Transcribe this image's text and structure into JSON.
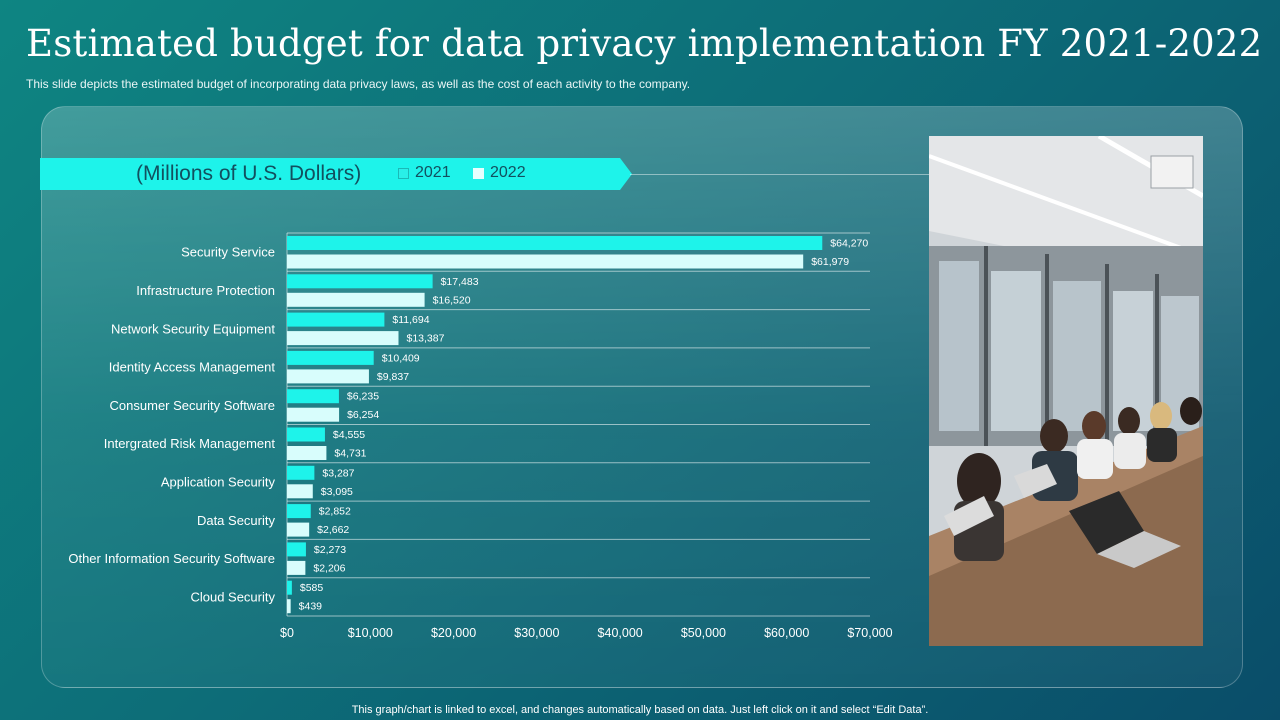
{
  "title": "Estimated budget for data privacy implementation FY 2021-2022",
  "subtitle": "This slide depicts the estimated budget of incorporating data  privacy laws, as well as the cost of each activity to the company.",
  "footer": "This graph/chart is linked to excel,  and changes automatically based on data. Just left click on it and select “Edit Data”.",
  "colors": {
    "series_2021": "#1ef3ea",
    "series_2022": "#d8fdfc",
    "banner": "#1ef3ea",
    "banner_text": "#12505f"
  },
  "chart_data": {
    "type": "bar",
    "orientation": "horizontal",
    "unit_label": "(Millions of U.S. Dollars)",
    "legend": [
      "2021",
      "2022"
    ],
    "categories": [
      "Security Service",
      "Infrastructure Protection",
      "Network Security Equipment",
      "Identity Access Management ",
      "Consumer Security Software",
      "Intergrated Risk Management",
      "Application Security",
      "Data Security",
      "Other Information Security Software",
      "Cloud Security"
    ],
    "series": [
      {
        "name": "2021",
        "values": [
          64270,
          17483,
          11694,
          10409,
          6235,
          4555,
          3287,
          2852,
          2273,
          585
        ],
        "labels": [
          "$64,270",
          "$17,483",
          "$11,694",
          "$10,409",
          "$6,235",
          "$4,555",
          "$3,287",
          "$2,852",
          "$2,273",
          "$585"
        ]
      },
      {
        "name": "2022",
        "values": [
          61979,
          16520,
          13387,
          9837,
          6254,
          4731,
          3095,
          2662,
          2206,
          439
        ],
        "labels": [
          "$61,979",
          "$16,520",
          "$13,387",
          "$9,837",
          "$6,254",
          "$4,731",
          "$3,095",
          "$2,662",
          "$2,206",
          "$439"
        ]
      }
    ],
    "xlim": [
      0,
      70000
    ],
    "xticks": [
      0,
      10000,
      20000,
      30000,
      40000,
      50000,
      60000,
      70000
    ],
    "xtick_labels": [
      "$0",
      "$10,000",
      "$20,000",
      "$30,000",
      "$40,000",
      "$50,000",
      "$60,000",
      "$70,000"
    ],
    "grid": true
  }
}
